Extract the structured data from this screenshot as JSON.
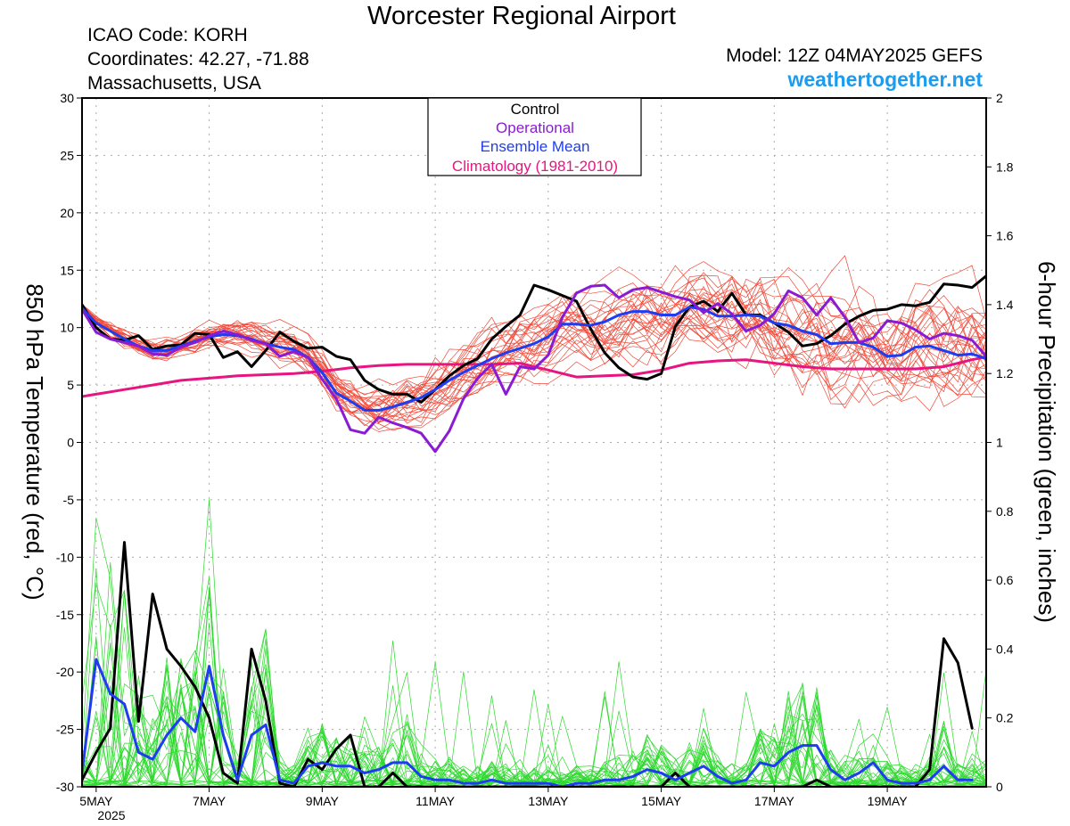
{
  "header": {
    "title": "Worcester Regional Airport",
    "icao": "ICAO Code: KORH",
    "coordinates": "Coordinates: 42.27, -71.88",
    "region": "Massachusetts, USA",
    "model": "Model: 12Z 04MAY2025 GEFS",
    "site": "weathertogether.net"
  },
  "chart_data": {
    "type": "line",
    "x_unit": "forecast hour from 12Z 04MAY2025",
    "x_range": [
      6,
      390
    ],
    "x_ticks": [
      {
        "label": "5MAY",
        "hour": 12
      },
      {
        "label": "7MAY",
        "hour": 60
      },
      {
        "label": "9MAY",
        "hour": 108
      },
      {
        "label": "11MAY",
        "hour": 156
      },
      {
        "label": "13MAY",
        "hour": 204
      },
      {
        "label": "15MAY",
        "hour": 252
      },
      {
        "label": "17MAY",
        "hour": 300
      },
      {
        "label": "19MAY",
        "hour": 348
      }
    ],
    "x_year_label": "2025",
    "left_axis": {
      "label": "850 hPa Temperature (red, °C)",
      "range": [
        -30,
        30
      ],
      "ticks": [
        -30,
        -25,
        -20,
        -15,
        -10,
        -5,
        0,
        5,
        10,
        15,
        20,
        25,
        30
      ]
    },
    "right_axis": {
      "label": "6-hour Precipitation (green, inches)",
      "range": [
        0,
        2
      ],
      "ticks": [
        0,
        0.2,
        0.4,
        0.6,
        0.8,
        1,
        1.2,
        1.4,
        1.6,
        1.8,
        2
      ]
    },
    "grid": true,
    "legend": {
      "position": "top-center",
      "entries": [
        {
          "label": "Control",
          "color": "#000000"
        },
        {
          "label": "Operational",
          "color": "#8a1bd4"
        },
        {
          "label": "Ensemble Mean",
          "color": "#1e3cf0"
        },
        {
          "label": "Climatology (1981-2010)",
          "color": "#e6157f"
        }
      ]
    },
    "colors": {
      "member_temp": "#f04a3a",
      "member_precip": "#2ed92e",
      "control": "#000000",
      "operational": "#8a1bd4",
      "mean": "#1e3cf0",
      "climatology": "#e6157f"
    },
    "temperature_series": {
      "control": [
        [
          6,
          12
        ],
        [
          12,
          10
        ],
        [
          18,
          9
        ],
        [
          24,
          8.9
        ],
        [
          30,
          9.3
        ],
        [
          36,
          8.1
        ],
        [
          42,
          8.4
        ],
        [
          48,
          8.5
        ],
        [
          54,
          9.5
        ],
        [
          60,
          9.4
        ],
        [
          66,
          7.4
        ],
        [
          72,
          7.9
        ],
        [
          78,
          6.6
        ],
        [
          84,
          8
        ],
        [
          90,
          9.6
        ],
        [
          96,
          8.8
        ],
        [
          102,
          8.2
        ],
        [
          108,
          8.3
        ],
        [
          114,
          7.5
        ],
        [
          120,
          7.2
        ],
        [
          126,
          5.4
        ],
        [
          132,
          4.6
        ],
        [
          138,
          4.2
        ],
        [
          144,
          4.2
        ],
        [
          150,
          3.5
        ],
        [
          156,
          4.6
        ],
        [
          162,
          5.8
        ],
        [
          168,
          6.7
        ],
        [
          174,
          7.3
        ],
        [
          180,
          9
        ],
        [
          186,
          10.1
        ],
        [
          192,
          11.1
        ],
        [
          198,
          13.7
        ],
        [
          204,
          13.3
        ],
        [
          210,
          12.8
        ],
        [
          216,
          12.3
        ],
        [
          222,
          9.9
        ],
        [
          228,
          7.8
        ],
        [
          234,
          6.5
        ],
        [
          240,
          5.7
        ],
        [
          246,
          5.5
        ],
        [
          252,
          6
        ],
        [
          258,
          10.1
        ],
        [
          264,
          11.8
        ],
        [
          270,
          12.3
        ],
        [
          276,
          11.4
        ],
        [
          282,
          13
        ],
        [
          288,
          11.1
        ],
        [
          294,
          11.1
        ],
        [
          300,
          10.4
        ],
        [
          306,
          9.6
        ],
        [
          312,
          8.4
        ],
        [
          318,
          8.6
        ],
        [
          324,
          9.3
        ],
        [
          330,
          10.3
        ],
        [
          336,
          11
        ],
        [
          342,
          11.5
        ],
        [
          348,
          11.6
        ],
        [
          354,
          12
        ],
        [
          360,
          11.9
        ],
        [
          366,
          12.2
        ],
        [
          372,
          13.8
        ],
        [
          378,
          13.7
        ],
        [
          384,
          13.5
        ],
        [
          390,
          14.5
        ]
      ],
      "operational": [
        [
          6,
          11.6
        ],
        [
          12,
          9.6
        ],
        [
          18,
          9
        ],
        [
          24,
          8.7
        ],
        [
          30,
          8.4
        ],
        [
          36,
          7.7
        ],
        [
          42,
          7.6
        ],
        [
          48,
          8.3
        ],
        [
          54,
          8.7
        ],
        [
          60,
          9.3
        ],
        [
          66,
          9.7
        ],
        [
          72,
          9.4
        ],
        [
          78,
          8.9
        ],
        [
          84,
          8.6
        ],
        [
          90,
          7.5
        ],
        [
          96,
          7.9
        ],
        [
          102,
          7.4
        ],
        [
          108,
          5.5
        ],
        [
          114,
          3.8
        ],
        [
          120,
          1.1
        ],
        [
          126,
          0.8
        ],
        [
          132,
          2.2
        ],
        [
          138,
          1.7
        ],
        [
          144,
          1.3
        ],
        [
          150,
          0.8
        ],
        [
          156,
          -0.8
        ],
        [
          162,
          1
        ],
        [
          168,
          3.8
        ],
        [
          174,
          5.6
        ],
        [
          180,
          6.8
        ],
        [
          186,
          4.2
        ],
        [
          192,
          6.6
        ],
        [
          198,
          6.4
        ],
        [
          204,
          7.6
        ],
        [
          210,
          10.9
        ],
        [
          216,
          13
        ],
        [
          222,
          13.6
        ],
        [
          228,
          13.7
        ],
        [
          234,
          12.6
        ],
        [
          240,
          13.3
        ],
        [
          246,
          13.5
        ],
        [
          252,
          13.1
        ],
        [
          258,
          12.7
        ],
        [
          264,
          12.4
        ],
        [
          270,
          11.3
        ],
        [
          276,
          12.1
        ],
        [
          282,
          11.2
        ],
        [
          288,
          9.7
        ],
        [
          294,
          10.2
        ],
        [
          300,
          11.2
        ],
        [
          306,
          13.2
        ],
        [
          312,
          12.6
        ],
        [
          318,
          11.1
        ],
        [
          324,
          12.6
        ],
        [
          330,
          10.9
        ],
        [
          336,
          8.7
        ],
        [
          342,
          9.1
        ],
        [
          348,
          10.6
        ],
        [
          354,
          10.4
        ],
        [
          360,
          9.8
        ],
        [
          366,
          9
        ],
        [
          372,
          9.5
        ],
        [
          378,
          9.3
        ],
        [
          384,
          8.9
        ],
        [
          390,
          7.5
        ],
        [
          396,
          5
        ]
      ],
      "ensemble_mean": [
        [
          6,
          11.7
        ],
        [
          12,
          10.4
        ],
        [
          18,
          9.7
        ],
        [
          24,
          9
        ],
        [
          30,
          8.4
        ],
        [
          36,
          8
        ],
        [
          42,
          8
        ],
        [
          48,
          8.4
        ],
        [
          54,
          8.8
        ],
        [
          60,
          9.2
        ],
        [
          66,
          9.4
        ],
        [
          72,
          9.3
        ],
        [
          78,
          9
        ],
        [
          84,
          8.6
        ],
        [
          90,
          8.3
        ],
        [
          96,
          8.1
        ],
        [
          102,
          7.4
        ],
        [
          108,
          6.1
        ],
        [
          114,
          4.3
        ],
        [
          120,
          3.6
        ],
        [
          126,
          2.8
        ],
        [
          132,
          2.8
        ],
        [
          138,
          3.1
        ],
        [
          144,
          3.5
        ],
        [
          150,
          3.9
        ],
        [
          156,
          4.6
        ],
        [
          162,
          5.4
        ],
        [
          168,
          6.1
        ],
        [
          174,
          6.7
        ],
        [
          180,
          7.3
        ],
        [
          186,
          7.8
        ],
        [
          192,
          8.2
        ],
        [
          198,
          8.6
        ],
        [
          204,
          9.2
        ],
        [
          210,
          10.3
        ],
        [
          216,
          10.3
        ],
        [
          222,
          10.2
        ],
        [
          228,
          10.5
        ],
        [
          234,
          11.1
        ],
        [
          240,
          11.4
        ],
        [
          246,
          11.4
        ],
        [
          252,
          11.1
        ],
        [
          258,
          11.1
        ],
        [
          264,
          11.8
        ],
        [
          270,
          11.6
        ],
        [
          276,
          11
        ],
        [
          282,
          11
        ],
        [
          288,
          11.1
        ],
        [
          294,
          11
        ],
        [
          300,
          10.4
        ],
        [
          306,
          10.2
        ],
        [
          312,
          9.7
        ],
        [
          318,
          9.4
        ],
        [
          324,
          8.6
        ],
        [
          330,
          8.7
        ],
        [
          336,
          8.7
        ],
        [
          342,
          8.3
        ],
        [
          348,
          7.5
        ],
        [
          354,
          7.6
        ],
        [
          360,
          8.3
        ],
        [
          366,
          8.4
        ],
        [
          372,
          8
        ],
        [
          378,
          7.6
        ],
        [
          384,
          7.7
        ],
        [
          390,
          7.3
        ],
        [
          396,
          7.2
        ]
      ],
      "climatology": [
        [
          6,
          4
        ],
        [
          12,
          4.2
        ],
        [
          24,
          4.6
        ],
        [
          36,
          5
        ],
        [
          48,
          5.4
        ],
        [
          60,
          5.6
        ],
        [
          72,
          5.8
        ],
        [
          84,
          5.9
        ],
        [
          96,
          6
        ],
        [
          108,
          6.2
        ],
        [
          120,
          6.5
        ],
        [
          132,
          6.7
        ],
        [
          144,
          6.8
        ],
        [
          156,
          6.8
        ],
        [
          168,
          6.8
        ],
        [
          180,
          6.8
        ],
        [
          192,
          6.9
        ],
        [
          204,
          6.3
        ],
        [
          216,
          5.7
        ],
        [
          228,
          5.8
        ],
        [
          240,
          5.9
        ],
        [
          252,
          6.3
        ],
        [
          264,
          6.9
        ],
        [
          276,
          7.1
        ],
        [
          288,
          7.2
        ],
        [
          300,
          6.9
        ],
        [
          312,
          6.6
        ],
        [
          324,
          6.4
        ],
        [
          336,
          6.4
        ],
        [
          348,
          6.4
        ],
        [
          360,
          6.4
        ],
        [
          372,
          6.6
        ],
        [
          384,
          7.2
        ],
        [
          396,
          7.7
        ]
      ]
    },
    "precip_series": {
      "control": [
        [
          6,
          0.02
        ],
        [
          12,
          0.1
        ],
        [
          18,
          0.17
        ],
        [
          24,
          0.71
        ],
        [
          30,
          0.19
        ],
        [
          36,
          0.56
        ],
        [
          42,
          0.4
        ],
        [
          48,
          0.35
        ],
        [
          54,
          0.29
        ],
        [
          60,
          0.2
        ],
        [
          66,
          0.04
        ],
        [
          72,
          0.01
        ],
        [
          78,
          0.4
        ],
        [
          84,
          0.25
        ],
        [
          90,
          0.01
        ],
        [
          96,
          0
        ],
        [
          102,
          0.08
        ],
        [
          108,
          0.05
        ],
        [
          114,
          0.11
        ],
        [
          120,
          0.15
        ],
        [
          126,
          0
        ],
        [
          132,
          0
        ],
        [
          138,
          0.04
        ],
        [
          144,
          0
        ],
        [
          150,
          0
        ],
        [
          156,
          0
        ],
        [
          168,
          0
        ],
        [
          180,
          0
        ],
        [
          192,
          0
        ],
        [
          204,
          0
        ],
        [
          216,
          0
        ],
        [
          228,
          0
        ],
        [
          240,
          0
        ],
        [
          252,
          0
        ],
        [
          258,
          0.04
        ],
        [
          264,
          0
        ],
        [
          276,
          0
        ],
        [
          288,
          0
        ],
        [
          300,
          0
        ],
        [
          312,
          0
        ],
        [
          318,
          0.02
        ],
        [
          324,
          0
        ],
        [
          336,
          0
        ],
        [
          348,
          0
        ],
        [
          360,
          0
        ],
        [
          366,
          0.05
        ],
        [
          372,
          0.43
        ],
        [
          378,
          0.36
        ],
        [
          384,
          0.17
        ]
      ],
      "ensemble_mean": [
        [
          6,
          0.04
        ],
        [
          12,
          0.37
        ],
        [
          18,
          0.27
        ],
        [
          24,
          0.24
        ],
        [
          30,
          0.1
        ],
        [
          36,
          0.08
        ],
        [
          42,
          0.15
        ],
        [
          48,
          0.2
        ],
        [
          54,
          0.16
        ],
        [
          60,
          0.35
        ],
        [
          66,
          0.15
        ],
        [
          72,
          0.02
        ],
        [
          78,
          0.15
        ],
        [
          84,
          0.18
        ],
        [
          90,
          0.02
        ],
        [
          96,
          0.01
        ],
        [
          102,
          0.06
        ],
        [
          108,
          0.07
        ],
        [
          114,
          0.06
        ],
        [
          120,
          0.06
        ],
        [
          126,
          0.04
        ],
        [
          132,
          0.05
        ],
        [
          138,
          0.07
        ],
        [
          144,
          0.07
        ],
        [
          150,
          0.03
        ],
        [
          156,
          0.02
        ],
        [
          162,
          0.02
        ],
        [
          168,
          0.01
        ],
        [
          174,
          0.01
        ],
        [
          180,
          0.02
        ],
        [
          186,
          0.01
        ],
        [
          192,
          0.01
        ],
        [
          198,
          0.01
        ],
        [
          204,
          0.01
        ],
        [
          210,
          0
        ],
        [
          216,
          0.01
        ],
        [
          222,
          0.01
        ],
        [
          228,
          0.02
        ],
        [
          234,
          0.02
        ],
        [
          240,
          0.03
        ],
        [
          246,
          0.05
        ],
        [
          252,
          0.04
        ],
        [
          258,
          0.02
        ],
        [
          264,
          0.04
        ],
        [
          270,
          0.06
        ],
        [
          276,
          0.03
        ],
        [
          282,
          0.01
        ],
        [
          288,
          0.02
        ],
        [
          294,
          0.07
        ],
        [
          300,
          0.06
        ],
        [
          306,
          0.1
        ],
        [
          312,
          0.12
        ],
        [
          318,
          0.12
        ],
        [
          324,
          0.05
        ],
        [
          330,
          0.02
        ],
        [
          336,
          0.04
        ],
        [
          342,
          0.07
        ],
        [
          348,
          0.02
        ],
        [
          354,
          0.01
        ],
        [
          360,
          0.01
        ],
        [
          366,
          0.02
        ],
        [
          372,
          0.06
        ],
        [
          378,
          0.02
        ],
        [
          384,
          0.02
        ]
      ]
    }
  }
}
